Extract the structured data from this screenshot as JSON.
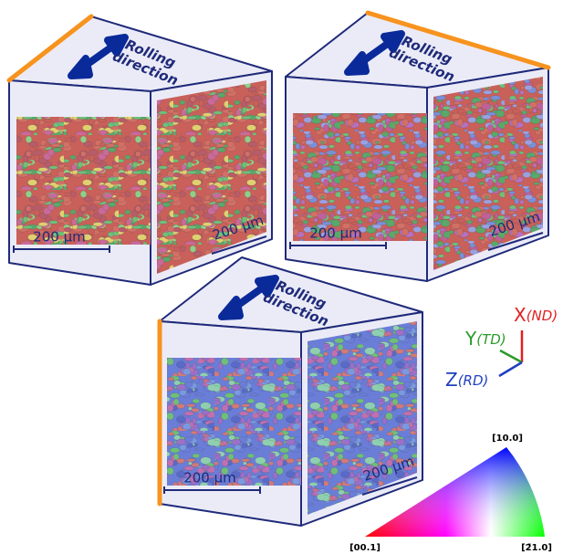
{
  "cubes": [
    {
      "label": [
        "Rolling",
        "direction"
      ],
      "scale_front": "200 µm",
      "scale_side": "200 µm"
    },
    {
      "label": [
        "Rolling",
        "direction"
      ],
      "scale_front": "200 µm",
      "scale_side": "200 µm"
    },
    {
      "label": [
        "Rolling",
        "direction"
      ],
      "scale_front": "200 µm",
      "scale_side": "200 µm"
    }
  ],
  "axes": [
    {
      "axis": "X",
      "direction": "(ND)"
    },
    {
      "axis": "Y",
      "direction": "(TD)"
    },
    {
      "axis": "Z",
      "direction": "(RD)"
    }
  ],
  "color_key": {
    "top": "[10.0]",
    "left": "[00.1]",
    "right": "[2̄1.0]"
  }
}
